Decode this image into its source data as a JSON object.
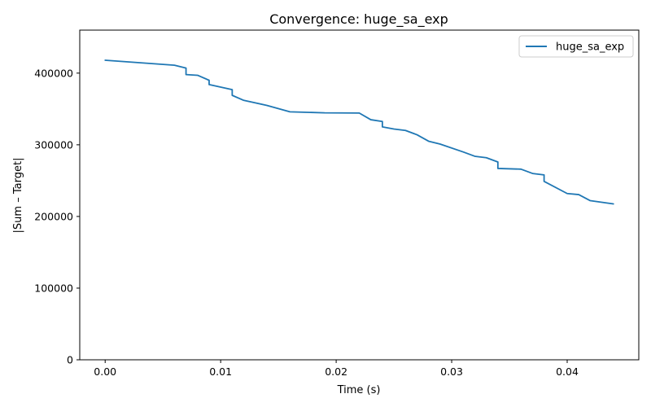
{
  "chart_data": {
    "type": "line",
    "title": "Convergence: huge_sa_exp",
    "xlabel": "Time (s)",
    "ylabel": "|Sum – Target|",
    "xlim": [
      -0.0022,
      0.0462
    ],
    "ylim": [
      0,
      460000
    ],
    "xticks": [
      0.0,
      0.01,
      0.02,
      0.03,
      0.04
    ],
    "xtick_labels": [
      "0.00",
      "0.01",
      "0.02",
      "0.03",
      "0.04"
    ],
    "yticks": [
      0,
      100000,
      200000,
      300000,
      400000
    ],
    "ytick_labels": [
      "0",
      "100000",
      "200000",
      "300000",
      "400000"
    ],
    "grid": false,
    "legend": "top-right",
    "series": [
      {
        "name": "huge_sa_exp",
        "color": "#1f77b4",
        "x": [
          0.0,
          0.006,
          0.007,
          0.007,
          0.008,
          0.009,
          0.009,
          0.011,
          0.011,
          0.012,
          0.014,
          0.016,
          0.019,
          0.022,
          0.023,
          0.024,
          0.024,
          0.025,
          0.026,
          0.027,
          0.028,
          0.029,
          0.031,
          0.032,
          0.033,
          0.034,
          0.034,
          0.036,
          0.037,
          0.038,
          0.038,
          0.04,
          0.041,
          0.042,
          0.044
        ],
        "y": [
          418000,
          411000,
          407000,
          398000,
          397000,
          390000,
          384000,
          377000,
          369000,
          362000,
          355000,
          346000,
          344600,
          344300,
          335000,
          332500,
          325000,
          322000,
          320000,
          314000,
          305000,
          301000,
          290000,
          284000,
          282000,
          276000,
          267000,
          266000,
          260000,
          258000,
          249000,
          232000,
          230500,
          222000,
          217500
        ]
      }
    ]
  }
}
